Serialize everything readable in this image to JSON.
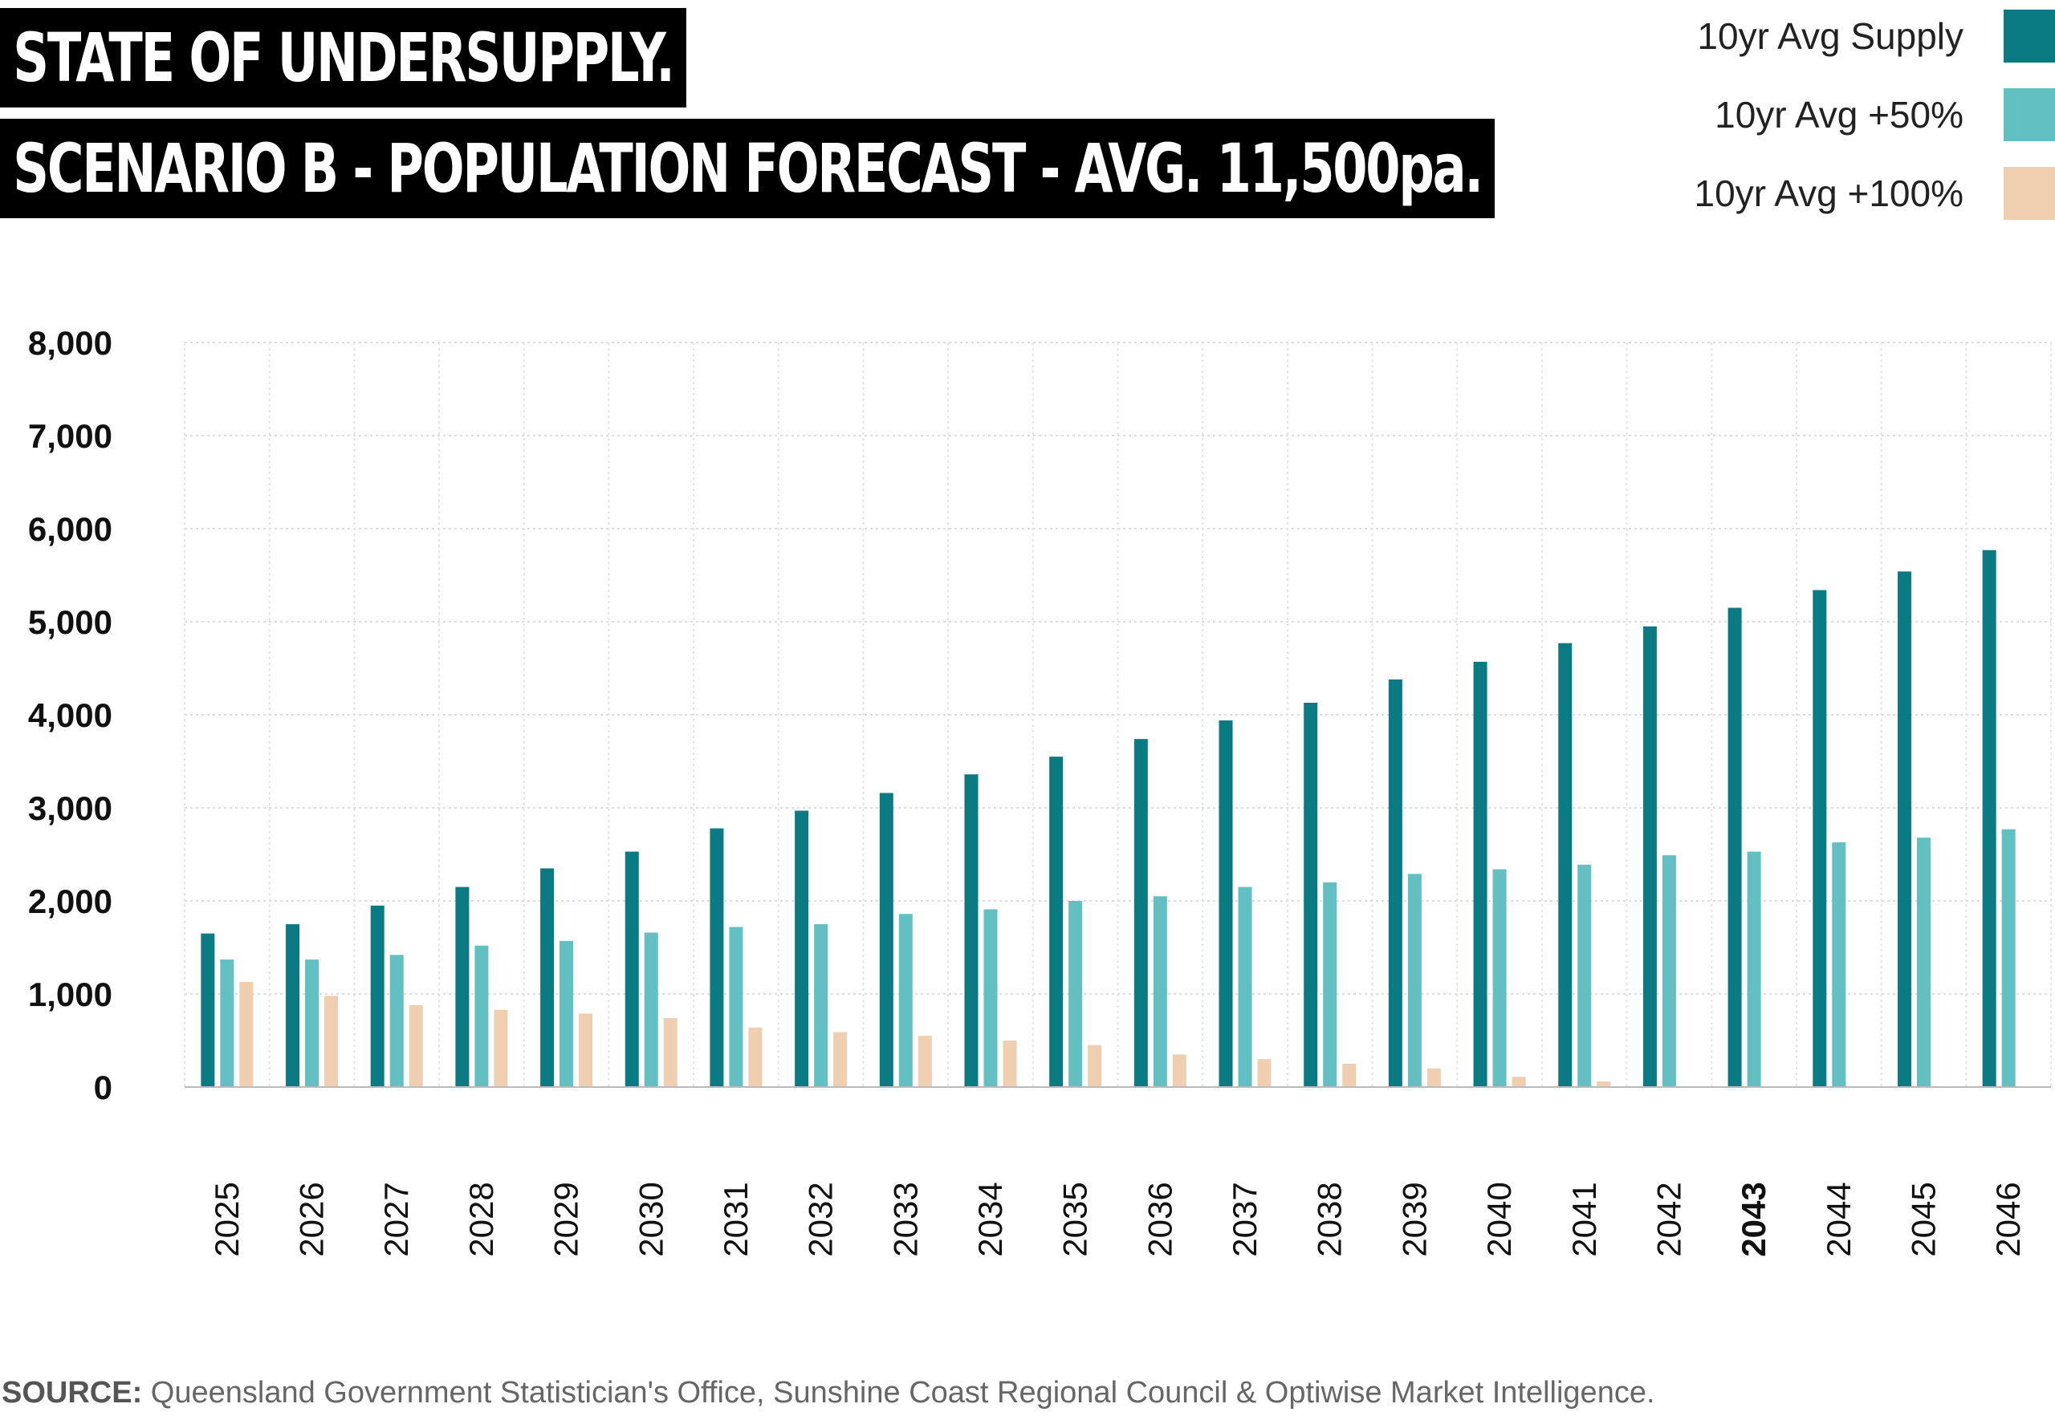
{
  "header": {
    "title_line1": "STATE OF UNDERSUPPLY.",
    "title_line2": "SCENARIO B - POPULATION FORECAST - AVG. 11,500pa."
  },
  "legend": [
    {
      "label": "10yr Avg Supply",
      "color": "#0b7b83"
    },
    {
      "label": "10yr Avg +50%",
      "color": "#62bfc2"
    },
    {
      "label": "10yr Avg +100%",
      "color": "#f0cfb0"
    }
  ],
  "chart_data": {
    "type": "bar",
    "categories": [
      "2025",
      "2026",
      "2027",
      "2028",
      "2029",
      "2030",
      "2031",
      "2032",
      "2033",
      "2034",
      "2035",
      "2036",
      "2037",
      "2038",
      "2039",
      "2040",
      "2041",
      "2042",
      "2043",
      "2044",
      "2045",
      "2046"
    ],
    "highlight_category": "2043",
    "series": [
      {
        "name": "10yr Avg Supply",
        "color": "#0b7b83",
        "values": [
          1650,
          1750,
          1950,
          2150,
          2350,
          2530,
          2780,
          2970,
          3160,
          3360,
          3550,
          3740,
          3940,
          4130,
          4380,
          4570,
          4770,
          4950,
          5150,
          5340,
          5540,
          5770
        ]
      },
      {
        "name": "10yr Avg +50%",
        "color": "#62bfc2",
        "values": [
          1370,
          1370,
          1420,
          1520,
          1570,
          1660,
          1720,
          1750,
          1860,
          1910,
          2000,
          2050,
          2150,
          2200,
          2290,
          2340,
          2390,
          2490,
          2530,
          2630,
          2680,
          2770
        ]
      },
      {
        "name": "10yr Avg +100%",
        "color": "#f0cfb0",
        "values": [
          1130,
          980,
          880,
          830,
          790,
          740,
          640,
          590,
          550,
          500,
          450,
          350,
          300,
          250,
          200,
          110,
          60,
          0,
          0,
          0,
          0,
          0
        ]
      }
    ],
    "ylim": [
      0,
      8000
    ],
    "yticks": [
      "0",
      "1,000",
      "2,000",
      "3,000",
      "4,000",
      "5,000",
      "6,000",
      "7,000",
      "8,000"
    ],
    "grid": true,
    "legend_position": "top-right"
  },
  "source": {
    "label": "SOURCE:",
    "text": " Queensland Government Statistician's Office, Sunshine Coast Regional Council & Optiwise Market Intelligence."
  }
}
